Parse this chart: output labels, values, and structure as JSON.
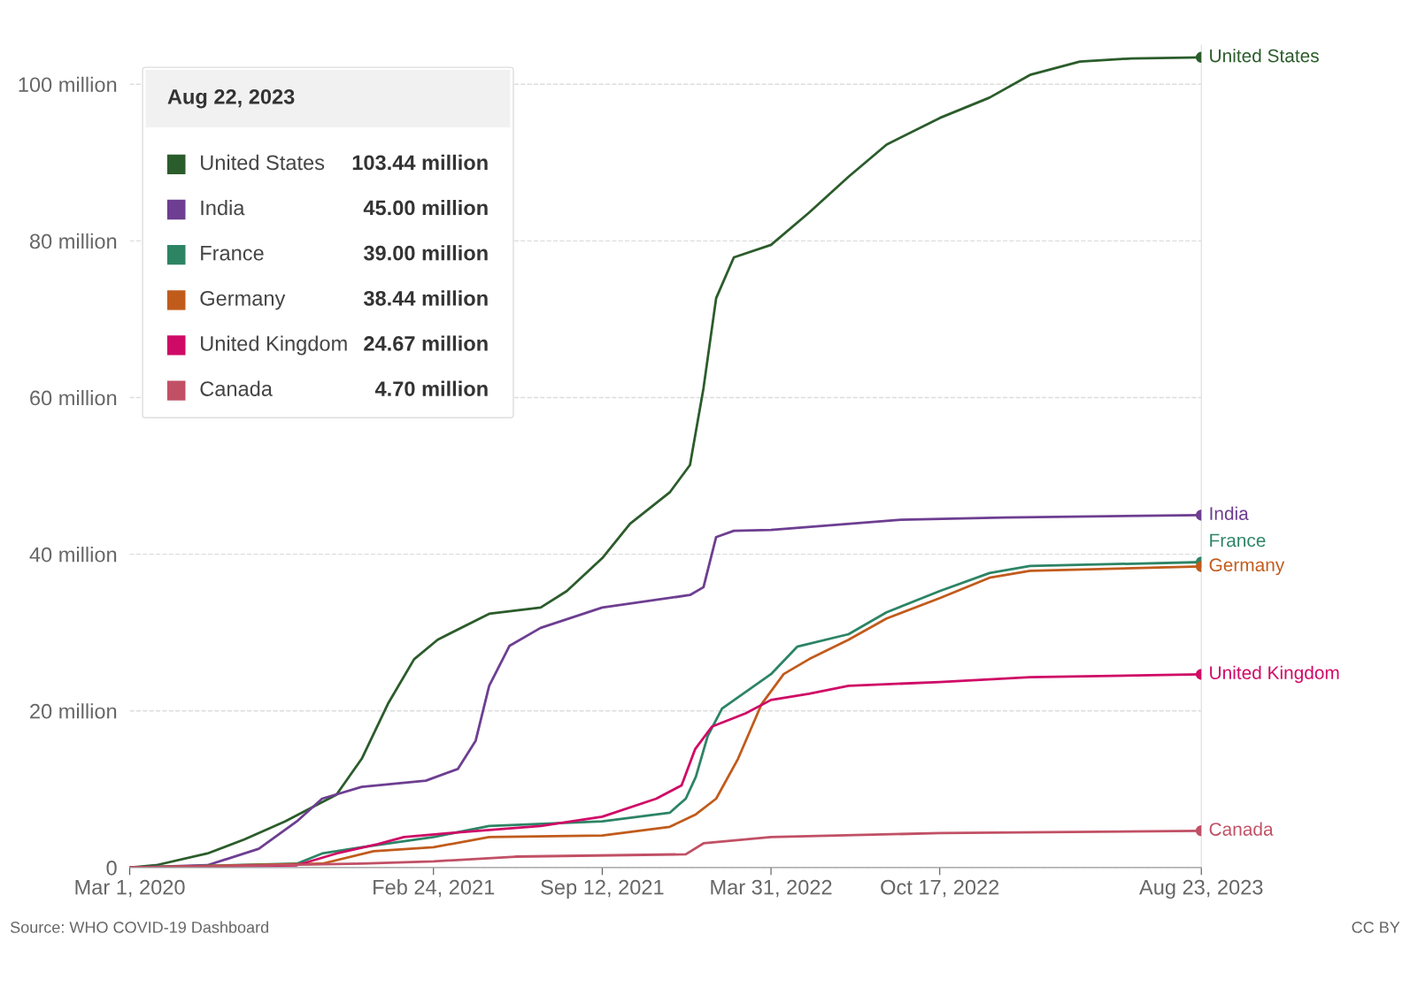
{
  "chart_data": {
    "type": "line",
    "legend": "top left",
    "legend_title": "Aug 22, 2023",
    "grid": "y",
    "marker": "none",
    "line_style": "solid",
    "xlim": [
      "2020-03-01",
      "2023-08-23"
    ],
    "xticks": [
      {
        "value": "2020-03-01",
        "label": "Mar 1, 2020"
      },
      {
        "value": "2021-02-24",
        "label": "Feb 24, 2021"
      },
      {
        "value": "2021-09-12",
        "label": "Sep 12, 2021"
      },
      {
        "value": "2022-03-31",
        "label": "Mar 31, 2022"
      },
      {
        "value": "2022-10-17",
        "label": "Oct 17, 2022"
      },
      {
        "value": "2023-08-23",
        "label": "Aug 23, 2023"
      }
    ],
    "ylim": [
      0,
      105
    ],
    "yticks": [
      {
        "value": 0,
        "label": "0"
      },
      {
        "value": 20,
        "label": "20 million"
      },
      {
        "value": 40,
        "label": "40 million"
      },
      {
        "value": 60,
        "label": "60 million"
      },
      {
        "value": 80,
        "label": "80 million"
      },
      {
        "value": 100,
        "label": "100 million"
      }
    ],
    "annotations": [
      "Source: WHO COVID-19 Dashboard",
      "CC BY",
      "103.44 million",
      "45.00 million",
      "39.00 million",
      "38.44 million",
      "24.67 million",
      "4.70 million"
    ],
    "series": [
      {
        "name": "United States",
        "color": "#2b5c2b",
        "x": [
          "2020-03-01",
          "2020-04-01",
          "2020-06-01",
          "2020-07-15",
          "2020-09-01",
          "2020-11-01",
          "2020-12-01",
          "2021-01-01",
          "2021-02-01",
          "2021-03-01",
          "2021-05-01",
          "2021-07-01",
          "2021-08-01",
          "2021-09-12",
          "2021-10-15",
          "2021-12-01",
          "2021-12-25",
          "2022-01-10",
          "2022-01-25",
          "2022-02-15",
          "2022-03-31",
          "2022-05-15",
          "2022-07-01",
          "2022-08-15",
          "2022-10-17",
          "2022-12-15",
          "2023-02-01",
          "2023-04-01",
          "2023-06-01",
          "2023-08-23"
        ],
        "values": [
          0,
          0.3,
          1.8,
          3.6,
          5.9,
          9.3,
          13.9,
          20.9,
          26.6,
          29.1,
          32.4,
          33.2,
          35.3,
          39.5,
          43.9,
          47.9,
          51.4,
          61.2,
          72.7,
          77.9,
          79.5,
          83.6,
          88.2,
          92.3,
          95.7,
          98.3,
          101.2,
          102.9,
          103.3,
          103.44
        ]
      },
      {
        "name": "India",
        "color": "#6d3e91",
        "x": [
          "2020-03-01",
          "2020-06-01",
          "2020-08-01",
          "2020-09-15",
          "2020-10-15",
          "2020-12-01",
          "2021-02-15",
          "2021-03-25",
          "2021-04-15",
          "2021-05-01",
          "2021-05-25",
          "2021-07-01",
          "2021-09-12",
          "2021-12-25",
          "2022-01-10",
          "2022-01-25",
          "2022-02-15",
          "2022-03-31",
          "2022-09-01",
          "2023-01-01",
          "2023-08-23"
        ],
        "values": [
          0,
          0.3,
          2.4,
          5.9,
          8.8,
          10.3,
          11.1,
          12.6,
          16.2,
          23.2,
          28.3,
          30.6,
          33.2,
          34.8,
          35.8,
          42.2,
          43.0,
          43.1,
          44.4,
          44.7,
          45.0
        ]
      },
      {
        "name": "France",
        "color": "#2c8465",
        "x": [
          "2020-03-01",
          "2020-09-15",
          "2020-10-15",
          "2020-12-01",
          "2021-02-24",
          "2021-05-01",
          "2021-09-12",
          "2021-12-01",
          "2021-12-20",
          "2022-01-01",
          "2022-01-15",
          "2022-02-01",
          "2022-03-31",
          "2022-05-01",
          "2022-07-01",
          "2022-08-15",
          "2022-10-17",
          "2022-12-15",
          "2023-02-01",
          "2023-08-23"
        ],
        "values": [
          0,
          0.5,
          1.8,
          2.6,
          3.9,
          5.3,
          5.9,
          7.0,
          8.8,
          11.6,
          16.8,
          20.3,
          24.7,
          28.2,
          29.8,
          32.6,
          35.3,
          37.6,
          38.5,
          39.0
        ]
      },
      {
        "name": "Germany",
        "color": "#c15b1c",
        "x": [
          "2020-03-01",
          "2020-10-15",
          "2020-12-15",
          "2021-02-24",
          "2021-05-01",
          "2021-09-12",
          "2021-12-01",
          "2022-01-01",
          "2022-01-25",
          "2022-02-20",
          "2022-03-20",
          "2022-04-15",
          "2022-05-15",
          "2022-07-01",
          "2022-08-15",
          "2022-10-17",
          "2022-12-15",
          "2023-02-01",
          "2023-08-23"
        ],
        "values": [
          0,
          0.5,
          2.1,
          2.6,
          3.9,
          4.1,
          5.2,
          6.8,
          8.8,
          13.9,
          20.9,
          24.7,
          26.6,
          29.1,
          31.8,
          34.4,
          37.0,
          37.9,
          38.44
        ]
      },
      {
        "name": "United Kingdom",
        "color": "#cf0a66",
        "x": [
          "2020-03-01",
          "2020-09-15",
          "2020-11-01",
          "2020-12-20",
          "2021-01-20",
          "2021-03-15",
          "2021-07-01",
          "2021-09-12",
          "2021-11-15",
          "2021-12-15",
          "2021-12-31",
          "2022-01-20",
          "2022-03-01",
          "2022-03-31",
          "2022-05-15",
          "2022-07-01",
          "2022-10-17",
          "2023-02-01",
          "2023-08-23"
        ],
        "values": [
          0,
          0.3,
          1.8,
          3.0,
          3.9,
          4.4,
          5.3,
          6.5,
          8.8,
          10.5,
          15.1,
          18.0,
          19.7,
          21.4,
          22.2,
          23.2,
          23.7,
          24.3,
          24.67
        ]
      },
      {
        "name": "Canada",
        "color": "#c15065",
        "x": [
          "2020-03-01",
          "2020-12-01",
          "2021-02-24",
          "2021-06-01",
          "2021-12-20",
          "2022-01-10",
          "2022-03-31",
          "2022-10-17",
          "2023-08-23"
        ],
        "values": [
          0,
          0.5,
          0.8,
          1.4,
          1.7,
          3.1,
          3.9,
          4.4,
          4.7
        ]
      }
    ]
  }
}
